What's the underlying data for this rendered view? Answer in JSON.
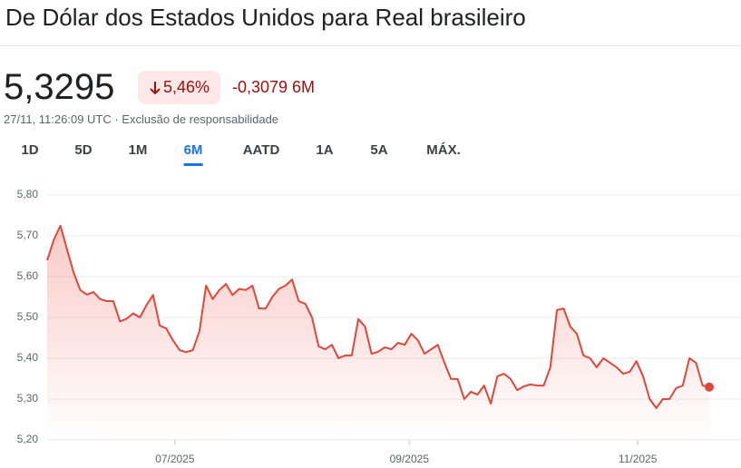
{
  "header": {
    "title": "De Dólar dos Estados Unidos para Real brasileiro",
    "price": "5,3295",
    "change_percent": "5,46%",
    "change_abs": "-0,3079 6M",
    "timestamp": "27/11, 11:26:09 UTC · Exclusão de responsabilidade"
  },
  "tabs": [
    "1D",
    "5D",
    "1M",
    "6M",
    "AATD",
    "1A",
    "5A",
    "MÁX."
  ],
  "active_tab": 3,
  "chart_data": {
    "type": "line",
    "color": "#e0473a",
    "grid": true,
    "values": [
      5.64,
      5.69,
      5.725,
      5.667,
      5.61,
      5.567,
      5.556,
      5.562,
      5.545,
      5.54,
      5.54,
      5.49,
      5.497,
      5.51,
      5.5,
      5.53,
      5.555,
      5.48,
      5.473,
      5.444,
      5.42,
      5.415,
      5.42,
      5.466,
      5.578,
      5.545,
      5.567,
      5.582,
      5.555,
      5.57,
      5.567,
      5.578,
      5.522,
      5.522,
      5.55,
      5.57,
      5.578,
      5.593,
      5.54,
      5.533,
      5.5,
      5.429,
      5.422,
      5.433,
      5.4,
      5.407,
      5.407,
      5.496,
      5.478,
      5.411,
      5.416,
      5.427,
      5.422,
      5.438,
      5.433,
      5.46,
      5.444,
      5.411,
      5.422,
      5.433,
      5.389,
      5.349,
      5.349,
      5.3,
      5.318,
      5.311,
      5.333,
      5.289,
      5.356,
      5.362,
      5.349,
      5.322,
      5.331,
      5.336,
      5.333,
      5.333,
      5.378,
      5.518,
      5.522,
      5.478,
      5.46,
      5.407,
      5.4,
      5.378,
      5.4,
      5.389,
      5.378,
      5.362,
      5.367,
      5.393,
      5.356,
      5.3,
      5.278,
      5.3,
      5.3,
      5.327,
      5.333,
      5.4,
      5.389,
      5.333,
      5.3295
    ],
    "xlim": [
      0,
      100
    ],
    "xticks": [
      {
        "value": 19.3,
        "label": "07/2025"
      },
      {
        "value": 54.7,
        "label": "09/2025"
      },
      {
        "value": 89.2,
        "label": "11/2025"
      }
    ],
    "ylim": [
      5.2,
      5.8
    ],
    "yticks": [
      {
        "value": 5.2,
        "label": "5,20"
      },
      {
        "value": 5.3,
        "label": "5,30"
      },
      {
        "value": 5.4,
        "label": "5,40"
      },
      {
        "value": 5.5,
        "label": "5,50"
      },
      {
        "value": 5.6,
        "label": "5,60"
      },
      {
        "value": 5.7,
        "label": "5,70"
      },
      {
        "value": 5.8,
        "label": "5,80"
      }
    ]
  }
}
